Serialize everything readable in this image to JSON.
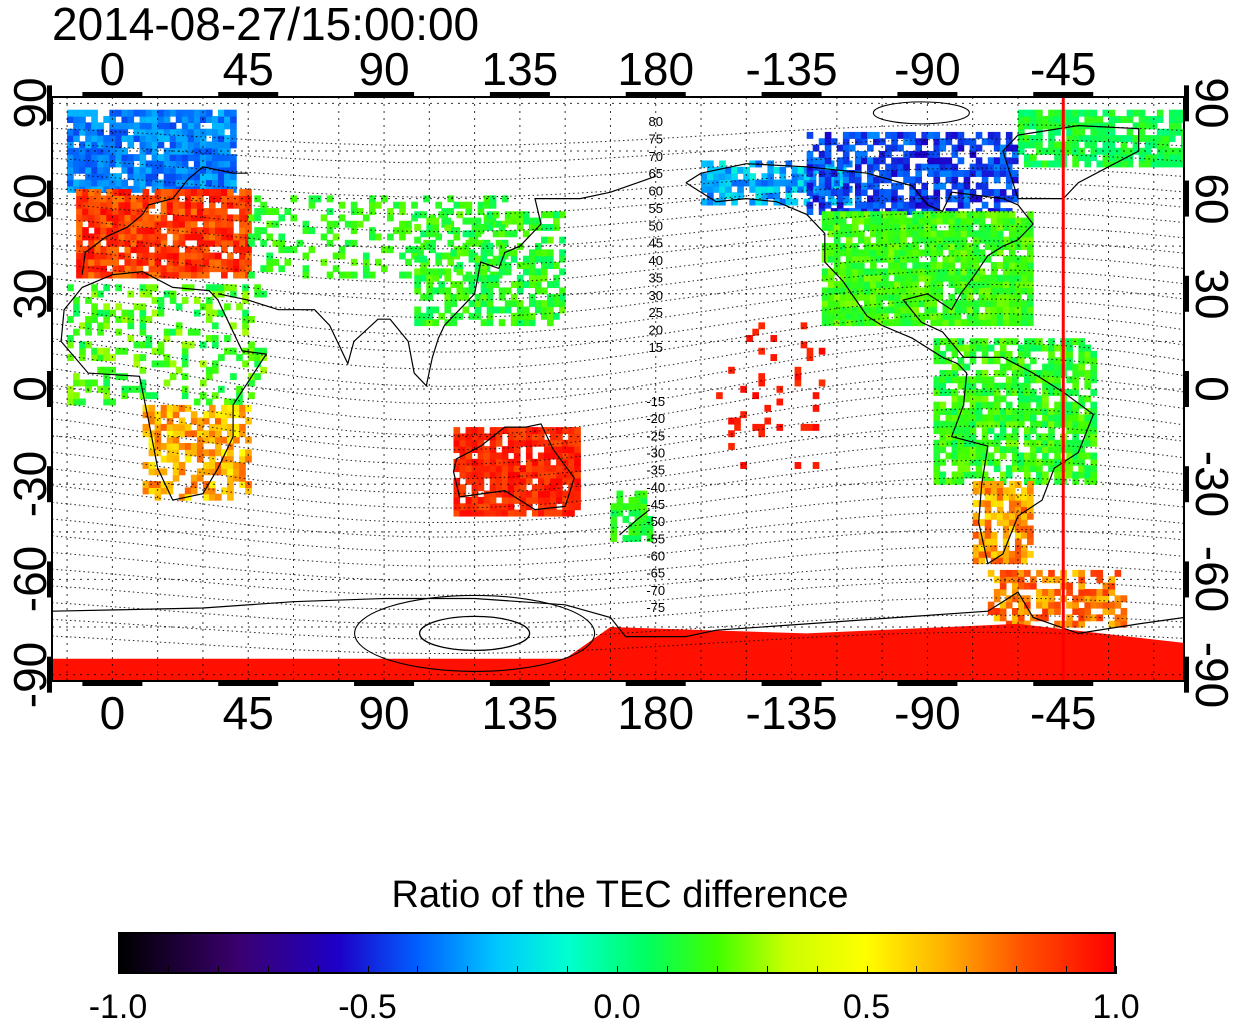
{
  "title": "2014-08-27/15:00:00",
  "map": {
    "x_ticks": [
      "0",
      "45",
      "90",
      "135",
      "180",
      "-135",
      "-90",
      "-45"
    ],
    "x_tick_lons": [
      0,
      45,
      90,
      135,
      180,
      225,
      270,
      315
    ],
    "y_ticks_left": [
      "90",
      "60",
      "30",
      "0",
      "-30",
      "-60",
      "-90"
    ],
    "y_ticks_right": [
      "90",
      "60",
      "30",
      "0",
      "-30",
      "-60",
      "-90"
    ],
    "y_tick_lats": [
      90,
      60,
      30,
      0,
      -30,
      -60,
      -90
    ],
    "lon_range": [
      -20,
      355
    ],
    "lat_range": [
      -92,
      92
    ],
    "grid": "dotted, every 15 degrees",
    "magnetic_latitude_labels_north": [
      "80",
      "75",
      "70",
      "65",
      "60",
      "55",
      "50",
      "45",
      "40",
      "35",
      "30",
      "25",
      "20",
      "15"
    ],
    "magnetic_latitude_labels_south": [
      "-15",
      "-20",
      "-25",
      "-30",
      "-35",
      "-40",
      "-45",
      "-50",
      "-55",
      "-60",
      "-65",
      "-70",
      "-75"
    ],
    "reference_meridian_lon": -45,
    "reference_meridian_color": "#ff0000"
  },
  "colorbar": {
    "label": "Ratio of the TEC difference",
    "ticks": [
      "-1.0",
      "-0.5",
      "0.0",
      "0.5",
      "1.0"
    ],
    "range": [
      -1.0,
      1.0
    ],
    "colors": [
      "#000000",
      "#3b0070",
      "#1d00c8",
      "#0060ff",
      "#00c8ff",
      "#00ffd0",
      "#00ff60",
      "#40ff00",
      "#c8ff00",
      "#ffff00",
      "#ffb000",
      "#ff5000",
      "#ff0000"
    ]
  }
}
